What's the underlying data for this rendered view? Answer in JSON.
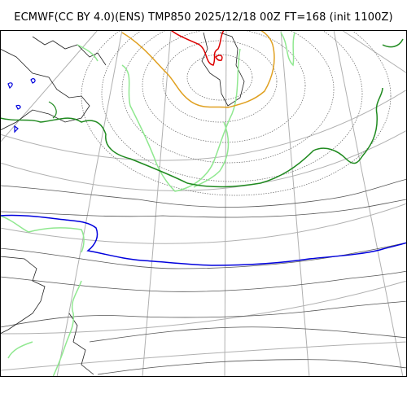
{
  "title": "ECMWF(CC BY 4.0)(ENS) TMP850 2025/12/18 00Z FT=168 (init 1100Z)",
  "colors": {
    "graticule": "#b0b0b0",
    "coastline": "#222222",
    "tmp_minus12": "#1f8a1f",
    "tmp_0": "#0000dd",
    "tmp_minus24": "#e0a020",
    "tmp_minus36": "#dd0000",
    "spread": "#90e890",
    "height": "#555555"
  },
  "legend_icons": [
    "graticule-line",
    "contour-line",
    "coastline"
  ]
}
